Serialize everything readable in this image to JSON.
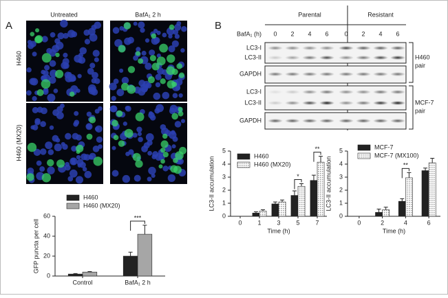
{
  "panels": {
    "A": {
      "label": "A",
      "column_labels": [
        "Untreated",
        "BafA₁ 2 h"
      ],
      "row_labels": [
        "H460",
        "H460 (MX20)"
      ]
    },
    "B": {
      "label": "B",
      "groups": [
        "Parental",
        "Resistant"
      ],
      "treatment_label": "BafA₁ (h)",
      "lane_times": [
        0,
        2,
        4,
        6,
        0,
        2,
        4,
        6
      ],
      "blot_labels": [
        "LC3-I",
        "LC3-II",
        "GAPDH",
        "LC3-I",
        "LC3-II",
        "GAPDH"
      ],
      "pair_labels": [
        [
          "H460",
          "pair"
        ],
        [
          "MCF-7",
          "pair"
        ]
      ]
    }
  },
  "chart_data": [
    {
      "type": "bar",
      "ylabel": "GFP puncta per cell",
      "categories": [
        "Control",
        "BafA₁ 2 h"
      ],
      "series": [
        {
          "name": "H460",
          "color": "#222222",
          "values": [
            2,
            20
          ],
          "errors": [
            0.5,
            4
          ]
        },
        {
          "name": "H460 (MX20)",
          "color": "#a6a6a6",
          "values": [
            4,
            42
          ],
          "errors": [
            0.5,
            9
          ]
        }
      ],
      "significance": [
        null,
        "***"
      ],
      "ylim": [
        0,
        60
      ],
      "yticks": [
        0,
        20,
        40,
        60
      ],
      "legend": "above"
    },
    {
      "type": "bar",
      "ylabel": "LC3-II accumulation",
      "xlabel": "Time (h)",
      "categories": [
        "0",
        "1",
        "3",
        "5",
        "7"
      ],
      "series": [
        {
          "name": "H460",
          "color": "#222222",
          "values": [
            0,
            0.25,
            0.95,
            1.6,
            2.75
          ],
          "errors": [
            0,
            0.1,
            0.15,
            0.35,
            0.4
          ]
        },
        {
          "name": "H460 (MX20)",
          "color": "#9a9a9a",
          "hatch": true,
          "values": [
            0,
            0.4,
            1.1,
            2.3,
            4.15
          ],
          "errors": [
            0,
            0.1,
            0.15,
            0.2,
            0.45
          ]
        }
      ],
      "significance": [
        null,
        null,
        null,
        "*",
        "**"
      ],
      "ylim": [
        0,
        5
      ],
      "yticks": [
        0,
        1,
        2,
        3,
        4,
        5
      ],
      "legend": "upper left"
    },
    {
      "type": "bar",
      "ylabel": "LC3-II accumulation",
      "xlabel": "Time (h)",
      "categories": [
        "0",
        "2",
        "4",
        "6"
      ],
      "series": [
        {
          "name": "MCF-7",
          "color": "#222222",
          "values": [
            0,
            0.3,
            1.15,
            3.5
          ],
          "errors": [
            0,
            0.25,
            0.2,
            0.2
          ]
        },
        {
          "name": "MCF-7 (MX100)",
          "color": "#9a9a9a",
          "hatch": true,
          "values": [
            0,
            0.5,
            2.95,
            4.1
          ],
          "errors": [
            0,
            0.2,
            0.4,
            0.35
          ]
        }
      ],
      "significance": [
        null,
        null,
        "**",
        null
      ],
      "ylim": [
        0,
        5
      ],
      "yticks": [
        0,
        1,
        2,
        3,
        4,
        5
      ],
      "legend": "upper left"
    }
  ]
}
